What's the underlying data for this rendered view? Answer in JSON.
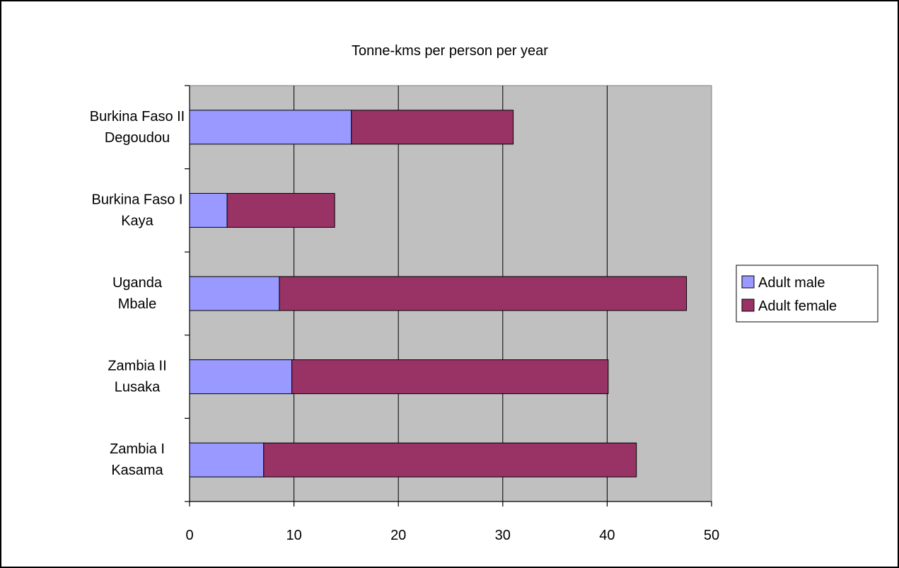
{
  "chart_data": {
    "type": "bar",
    "orientation": "horizontal",
    "stacked": true,
    "title": "Tonne-kms per person per year",
    "xlabel": "",
    "ylabel": "",
    "xlim": [
      0,
      50
    ],
    "x_ticks": [
      0,
      10,
      20,
      30,
      40,
      50
    ],
    "grid": true,
    "legend_position": "right",
    "categories": [
      {
        "line1": "Burkina Faso II",
        "line2": "Degoudou"
      },
      {
        "line1": "Burkina Faso I",
        "line2": "Kaya"
      },
      {
        "line1": "Uganda",
        "line2": "Mbale"
      },
      {
        "line1": "Zambia II",
        "line2": "Lusaka"
      },
      {
        "line1": "Zambia I",
        "line2": "Kasama"
      }
    ],
    "series": [
      {
        "name": "Adult male",
        "color": "#9999ff",
        "values": [
          15.5,
          3.6,
          8.6,
          9.8,
          7.1
        ]
      },
      {
        "name": "Adult female",
        "color": "#993366",
        "values": [
          15.5,
          10.3,
          39.0,
          30.3,
          35.7
        ]
      }
    ],
    "plot_background": "#c0c0c0"
  }
}
